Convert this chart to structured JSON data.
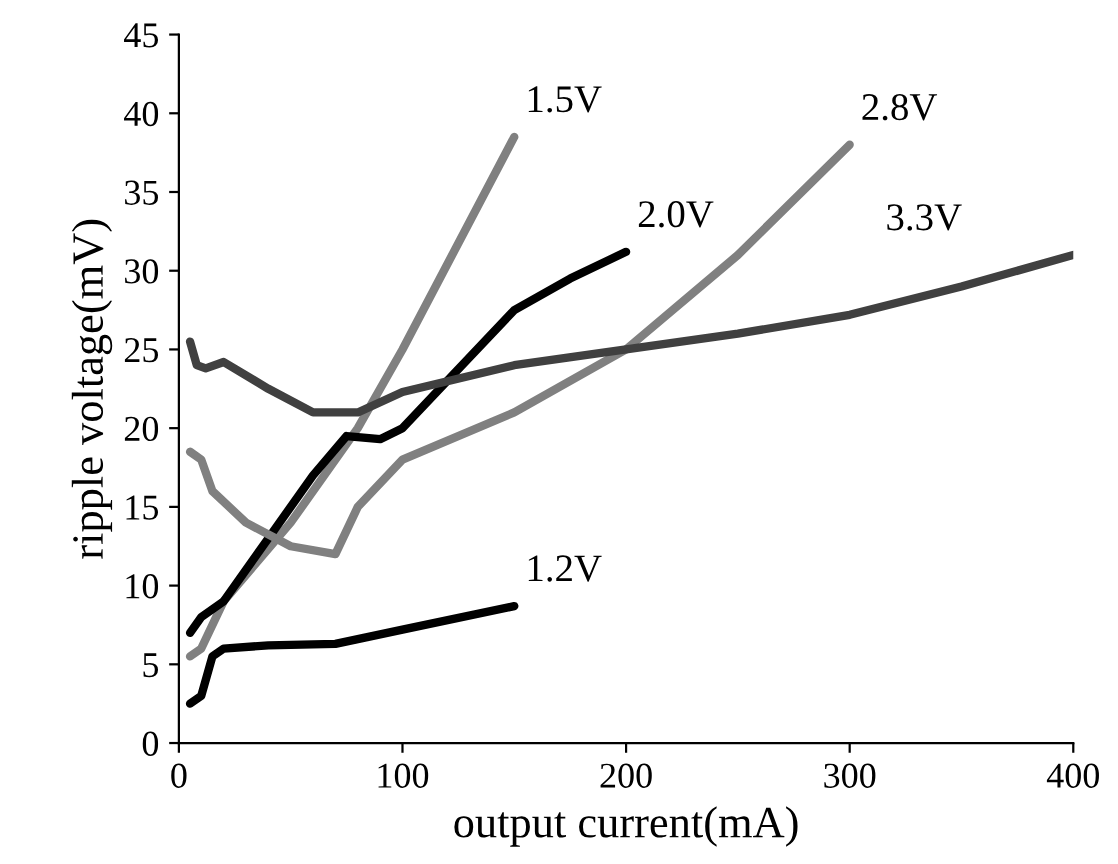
{
  "chart_data": {
    "type": "line",
    "xlabel": "output current(mA)",
    "ylabel": "ripple voltage(mV)",
    "xlim": [
      0,
      400
    ],
    "xticks": [
      0,
      100,
      200,
      300,
      400
    ],
    "ylim": [
      0,
      45
    ],
    "yticks": [
      0,
      5,
      10,
      15,
      20,
      25,
      30,
      35,
      40,
      45
    ],
    "grid": false,
    "legend": false,
    "series": [
      {
        "name": "1.2V",
        "color": "#000000",
        "x": [
          5,
          10,
          15,
          20,
          40,
          70,
          100,
          150
        ],
        "values": [
          2.5,
          3,
          5.5,
          6,
          6.2,
          6.3,
          7.2,
          8.7
        ]
      },
      {
        "name": "1.5V",
        "color": "#808080",
        "x": [
          5,
          10,
          20,
          50,
          80,
          100,
          150
        ],
        "values": [
          5.5,
          6,
          9,
          14,
          20,
          25,
          38.5
        ]
      },
      {
        "name": "2.0V",
        "color": "#000000",
        "x": [
          5,
          10,
          20,
          40,
          60,
          75,
          90,
          100,
          120,
          150,
          175,
          200
        ],
        "values": [
          7,
          8,
          9,
          13,
          17,
          19.5,
          19.3,
          20,
          23,
          27.5,
          29.5,
          31.2
        ]
      },
      {
        "name": "2.8V",
        "color": "#808080",
        "x": [
          5,
          10,
          15,
          30,
          50,
          70,
          80,
          100,
          150,
          200,
          250,
          300
        ],
        "values": [
          18.5,
          18,
          16,
          14,
          12.5,
          12,
          15,
          18,
          21,
          25,
          31,
          38
        ]
      },
      {
        "name": "3.3V",
        "color": "#404040",
        "x": [
          5,
          8,
          12,
          20,
          40,
          60,
          80,
          100,
          150,
          200,
          250,
          300,
          350,
          400
        ],
        "values": [
          25.5,
          24,
          23.8,
          24.2,
          22.5,
          21,
          21,
          22.3,
          24,
          25,
          26,
          27.2,
          29,
          31
        ]
      }
    ]
  }
}
